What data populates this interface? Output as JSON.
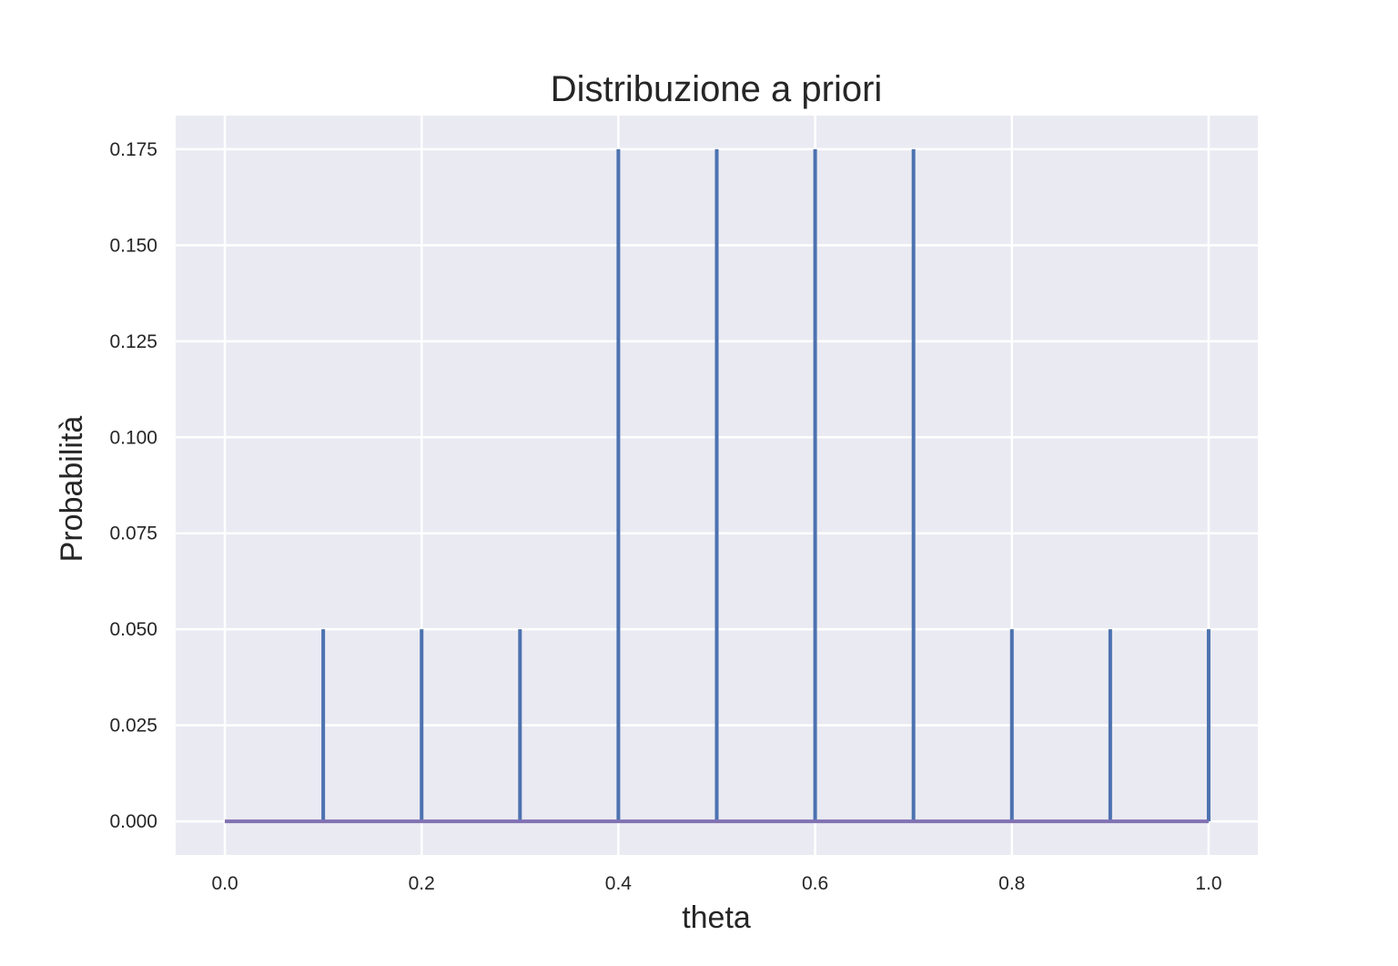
{
  "chart_data": {
    "type": "bar",
    "title": "Distribuzione a priori",
    "xlabel": "theta",
    "ylabel": "Probabilità",
    "x": [
      0.0,
      0.1,
      0.2,
      0.3,
      0.4,
      0.5,
      0.6,
      0.7,
      0.8,
      0.9,
      1.0
    ],
    "values": [
      0.0,
      0.05,
      0.05,
      0.05,
      0.175,
      0.175,
      0.175,
      0.175,
      0.05,
      0.05,
      0.05
    ],
    "xlim": [
      -0.05,
      1.05
    ],
    "ylim": [
      -0.00875,
      0.18375
    ],
    "xticks": [
      "0.0",
      "0.2",
      "0.4",
      "0.6",
      "0.8",
      "1.0"
    ],
    "yticks": [
      "0.000",
      "0.025",
      "0.050",
      "0.075",
      "0.100",
      "0.125",
      "0.150",
      "0.175"
    ],
    "grid": true,
    "colors": {
      "background": "#eaeaf2",
      "grid": "#ffffff",
      "stem": "#4c72b0",
      "baseline": "#8172b3"
    }
  }
}
